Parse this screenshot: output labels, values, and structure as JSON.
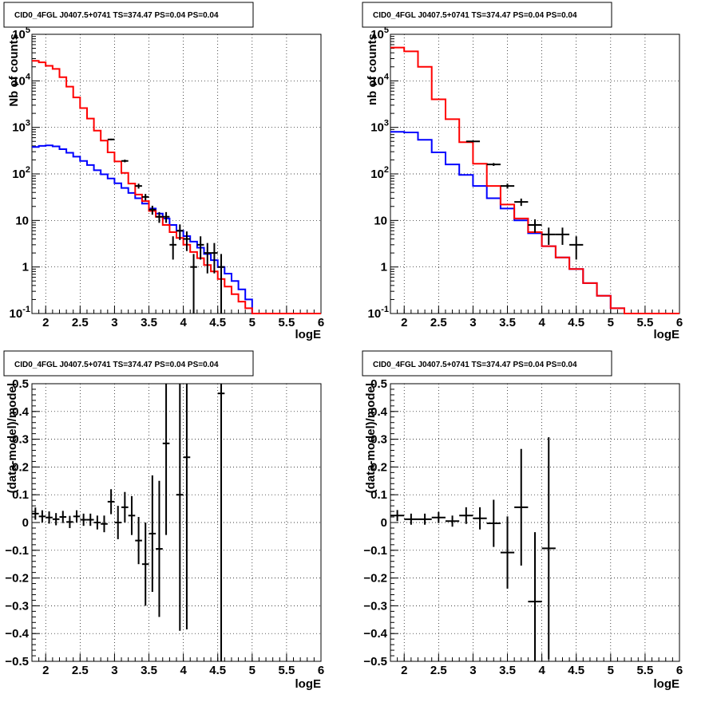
{
  "panels_title": "CID0_4FGL J0407.5+0741 TS=374.47 PS=0.04 PS=0.04",
  "colors": {
    "total_model": "#ff0000",
    "source_model": "#0000ff",
    "data": "#000000"
  },
  "chart_data": [
    {
      "type": "line",
      "title": "CID0_4FGL J0407.5+0741 TS=374.47 PS=0.04 PS=0.04",
      "xlabel": "logE",
      "ylabel": "Nb of counts",
      "xlim": [
        1.8,
        6
      ],
      "ylim": [
        0.1,
        100000
      ],
      "yscale": "log",
      "grid": true,
      "xticks": [
        "2",
        "2.5",
        "3",
        "3.5",
        "4",
        "4.5",
        "5",
        "5.5",
        "6"
      ],
      "yticks": [
        "10^-1",
        "1",
        "10",
        "10^2",
        "10^3",
        "10^4",
        "10^5"
      ],
      "bin_width": 0.1,
      "bin_edges_start": 1.8,
      "series": [
        {
          "values": [
            27000,
            25000,
            21000,
            18000,
            12000,
            7500,
            4400,
            2600,
            1550,
            850,
            520,
            290,
            185,
            105,
            62,
            36,
            26,
            16,
            12,
            8,
            5.6,
            4.2,
            3.0,
            2.1,
            1.55,
            1.1,
            0.8,
            0.55,
            0.38,
            0.26,
            0.18,
            0.13,
            0.1,
            0.1,
            0.1,
            0.1,
            0.1,
            0.1,
            0.1,
            0.1,
            0.1,
            0.1
          ]
        },
        {
          "values": [
            380,
            400,
            410,
            390,
            340,
            285,
            235,
            190,
            155,
            120,
            98,
            80,
            63,
            50,
            39,
            30,
            23,
            18,
            14,
            11,
            8,
            6,
            4.6,
            3.5,
            2.6,
            1.9,
            1.4,
            1.0,
            0.72,
            0.5,
            0.33,
            0.2,
            0.1,
            0.1,
            0.1,
            0.1,
            0.1,
            0.1,
            0.1,
            0.1,
            0.1,
            0.1
          ]
        },
        {
          "points": [
            {
              "x": 2.95,
              "y": 550
            },
            {
              "x": 3.15,
              "y": 190
            },
            {
              "x": 3.35,
              "y": 55
            },
            {
              "x": 3.45,
              "y": 32
            },
            {
              "x": 3.55,
              "y": 17
            },
            {
              "x": 3.65,
              "y": 12
            },
            {
              "x": 3.75,
              "y": 12
            },
            {
              "x": 3.85,
              "y": 3
            },
            {
              "x": 3.95,
              "y": 6
            },
            {
              "x": 4.05,
              "y": 4
            },
            {
              "x": 4.15,
              "y": 1
            },
            {
              "x": 4.25,
              "y": 3
            },
            {
              "x": 4.35,
              "y": 2
            },
            {
              "x": 4.45,
              "y": 2
            },
            {
              "x": 4.55,
              "y": 1
            }
          ]
        }
      ]
    },
    {
      "type": "line",
      "title": "CID0_4FGL J0407.5+0741 TS=374.47 PS=0.04 PS=0.04",
      "xlabel": "logE",
      "ylabel": "nb of counts",
      "xlim": [
        1.8,
        6
      ],
      "ylim": [
        0.1,
        100000
      ],
      "yscale": "log",
      "grid": true,
      "xticks": [
        "2",
        "2.5",
        "3",
        "3.5",
        "4",
        "4.5",
        "5",
        "5.5",
        "6"
      ],
      "yticks": [
        "10^-1",
        "1",
        "10",
        "10^2",
        "10^3",
        "10^4",
        "10^5"
      ],
      "bin_width": 0.2,
      "bin_edges_start": 1.8,
      "series": [
        {
          "values": [
            52000,
            43000,
            20000,
            4000,
            1500,
            480,
            165,
            55,
            22,
            11,
            5.6,
            2.8,
            1.6,
            0.9,
            0.45,
            0.24,
            0.13,
            0.1,
            0.1,
            0.1,
            0.1
          ]
        },
        {
          "values": [
            800,
            780,
            540,
            290,
            160,
            95,
            55,
            30,
            18,
            10,
            5.3,
            2.8,
            1.6,
            0.9,
            0.45,
            0.24,
            0.13,
            0.1,
            0.1,
            0.1,
            0.1
          ]
        },
        {
          "points": [
            {
              "x": 3.0,
              "y": 500
            },
            {
              "x": 3.3,
              "y": 160
            },
            {
              "x": 3.5,
              "y": 55
            },
            {
              "x": 3.7,
              "y": 25
            },
            {
              "x": 3.9,
              "y": 8
            },
            {
              "x": 4.1,
              "y": 5
            },
            {
              "x": 4.3,
              "y": 5
            },
            {
              "x": 4.5,
              "y": 3
            }
          ]
        }
      ]
    },
    {
      "type": "scatter",
      "title": "CID0_4FGL J0407.5+0741 TS=374.47 PS=0.04 PS=0.04",
      "xlabel": "logE",
      "ylabel": "(data-model)/model",
      "xlim": [
        1.8,
        6
      ],
      "ylim": [
        -0.5,
        0.5
      ],
      "grid": true,
      "xticks": [
        "2",
        "2.5",
        "3",
        "3.5",
        "4",
        "4.5",
        "5",
        "5.5",
        "6"
      ],
      "yticks": [
        "−0.5",
        "−0.4",
        "−0.3",
        "−0.2",
        "−0.1",
        "0",
        "0.1",
        "0.2",
        "0.3",
        "0.4",
        "0.5"
      ],
      "x_half_width": 0.05,
      "points": [
        {
          "x": 1.85,
          "y": 0.032,
          "err": 0.022
        },
        {
          "x": 1.95,
          "y": 0.022,
          "err": 0.022
        },
        {
          "x": 2.05,
          "y": 0.018,
          "err": 0.022
        },
        {
          "x": 2.15,
          "y": 0.012,
          "err": 0.022
        },
        {
          "x": 2.25,
          "y": 0.02,
          "err": 0.022
        },
        {
          "x": 2.35,
          "y": 0.002,
          "err": 0.022
        },
        {
          "x": 2.45,
          "y": 0.022,
          "err": 0.022
        },
        {
          "x": 2.55,
          "y": 0.01,
          "err": 0.022
        },
        {
          "x": 2.65,
          "y": 0.01,
          "err": 0.022
        },
        {
          "x": 2.75,
          "y": 0.0,
          "err": 0.025
        },
        {
          "x": 2.85,
          "y": -0.005,
          "err": 0.03
        },
        {
          "x": 2.95,
          "y": 0.075,
          "err": 0.045
        },
        {
          "x": 3.05,
          "y": 0.0,
          "err": 0.06
        },
        {
          "x": 3.15,
          "y": 0.055,
          "err": 0.055
        },
        {
          "x": 3.25,
          "y": 0.025,
          "err": 0.07
        },
        {
          "x": 3.35,
          "y": -0.065,
          "err": 0.085
        },
        {
          "x": 3.45,
          "y": -0.15,
          "err": 0.15
        },
        {
          "x": 3.55,
          "y": -0.04,
          "err": 0.21
        },
        {
          "x": 3.65,
          "y": -0.095,
          "err": 0.245
        },
        {
          "x": 3.75,
          "y": 0.285,
          "err": 0.33
        },
        {
          "x": 3.95,
          "y": 0.1,
          "err": 0.49
        },
        {
          "x": 4.05,
          "y": 0.235,
          "err": 0.62
        },
        {
          "x": 4.55,
          "y": 0.465,
          "err": 1.0
        }
      ]
    },
    {
      "type": "scatter",
      "title": "CID0_4FGL J0407.5+0741 TS=374.47 PS=0.04 PS=0.04",
      "xlabel": "logE",
      "ylabel": "(data-model)/model",
      "xlim": [
        1.8,
        6
      ],
      "ylim": [
        -0.5,
        0.5
      ],
      "grid": true,
      "xticks": [
        "2",
        "2.5",
        "3",
        "3.5",
        "4",
        "4.5",
        "5",
        "5.5",
        "6"
      ],
      "yticks": [
        "−0.5",
        "−0.4",
        "−0.3",
        "−0.2",
        "−0.1",
        "0",
        "0.1",
        "0.2",
        "0.3",
        "0.4",
        "0.5"
      ],
      "x_half_width": 0.1,
      "points": [
        {
          "x": 1.9,
          "y": 0.025,
          "err": 0.02
        },
        {
          "x": 2.1,
          "y": 0.012,
          "err": 0.02
        },
        {
          "x": 2.3,
          "y": 0.012,
          "err": 0.02
        },
        {
          "x": 2.5,
          "y": 0.018,
          "err": 0.02
        },
        {
          "x": 2.7,
          "y": 0.005,
          "err": 0.02
        },
        {
          "x": 2.9,
          "y": 0.025,
          "err": 0.03
        },
        {
          "x": 3.1,
          "y": 0.015,
          "err": 0.04
        },
        {
          "x": 3.3,
          "y": -0.003,
          "err": 0.085
        },
        {
          "x": 3.5,
          "y": -0.108,
          "err": 0.13
        },
        {
          "x": 3.7,
          "y": 0.055,
          "err": 0.21
        },
        {
          "x": 3.9,
          "y": -0.285,
          "err": 0.25
        },
        {
          "x": 4.1,
          "y": -0.093,
          "err": 0.4
        }
      ]
    }
  ]
}
